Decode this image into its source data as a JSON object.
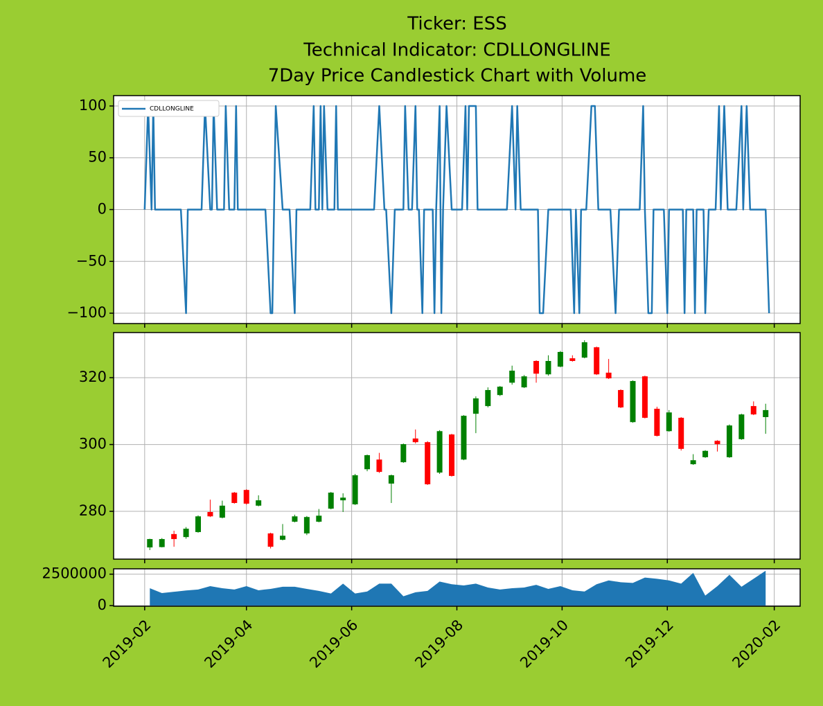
{
  "title": [
    "Ticker: ESS",
    "Technical Indicator: CDLLONGLINE",
    "7Day Price Candlestick Chart with Volume"
  ],
  "chart_data": [
    {
      "type": "line",
      "grid": true,
      "legend": "upper left",
      "xlim": [
        "2019-01-14",
        "2020-02-16"
      ],
      "xticks": [
        "2019-02-01",
        "2019-04-01",
        "2019-06-01",
        "2019-08-01",
        "2019-10-01",
        "2019-12-01",
        "2020-02-01"
      ],
      "ylim": [
        -110,
        110
      ],
      "yticks": [
        100,
        50,
        0,
        {
          "value": -50,
          "label": "−50"
        },
        {
          "value": -100,
          "label": "−100"
        }
      ],
      "x": [
        "2019-02-01",
        "2019-02-03",
        "2019-02-05",
        "2019-02-06",
        "2019-02-07",
        "2019-02-22",
        "2019-02-25",
        "2019-02-26",
        "2019-03-06",
        "2019-03-08",
        "2019-03-11",
        "2019-03-12",
        "2019-03-13",
        "2019-03-15",
        "2019-03-19",
        "2019-03-20",
        "2019-03-22",
        "2019-03-25",
        "2019-03-26",
        "2019-03-27",
        "2019-04-12",
        "2019-04-15",
        "2019-04-16",
        "2019-04-18",
        "2019-04-22",
        "2019-04-26",
        "2019-04-29",
        "2019-04-30",
        "2019-05-08",
        "2019-05-10",
        "2019-05-11",
        "2019-05-13",
        "2019-05-14",
        "2019-05-15",
        "2019-05-16",
        "2019-05-18",
        "2019-05-22",
        "2019-05-23",
        "2019-05-24",
        "2019-06-14",
        "2019-06-17",
        "2019-06-20",
        "2019-06-21",
        "2019-06-24",
        "2019-06-26",
        "2019-07-01",
        "2019-07-02",
        "2019-07-04",
        "2019-07-06",
        "2019-07-08",
        "2019-07-09",
        "2019-07-10",
        "2019-07-12",
        "2019-07-13",
        "2019-07-18",
        "2019-07-19",
        "2019-07-20",
        "2019-07-22",
        "2019-07-23",
        "2019-07-24",
        "2019-07-26",
        "2019-07-29",
        "2019-08-04",
        "2019-08-06",
        "2019-08-07",
        "2019-08-08",
        "2019-08-12",
        "2019-08-13",
        "2019-08-30",
        "2019-09-02",
        "2019-09-04",
        "2019-09-05",
        "2019-09-07",
        "2019-09-17",
        "2019-09-18",
        "2019-09-20",
        "2019-09-23",
        "2019-10-06",
        "2019-10-08",
        "2019-10-09",
        "2019-10-11",
        "2019-10-12",
        "2019-10-15",
        "2019-10-18",
        "2019-10-20",
        "2019-10-22",
        "2019-10-29",
        "2019-11-01",
        "2019-11-03",
        "2019-11-15",
        "2019-11-17",
        "2019-11-18",
        "2019-11-20",
        "2019-11-22",
        "2019-11-23",
        "2019-11-29",
        "2019-12-01",
        "2019-12-02",
        "2019-12-10",
        "2019-12-11",
        "2019-12-12",
        "2019-12-16",
        "2019-12-17",
        "2019-12-18",
        "2019-12-22",
        "2019-12-23",
        "2019-12-25",
        "2019-12-29",
        "2019-12-31",
        "2020-01-01",
        "2020-01-03",
        "2020-01-05",
        "2020-01-10",
        "2020-01-13",
        "2020-01-14",
        "2020-01-16",
        "2020-01-18",
        "2020-01-27",
        "2020-01-29"
      ],
      "series": [
        {
          "name": "CDLLONGLINE",
          "color": "#1f77b4",
          "values": [
            0,
            100,
            0,
            100,
            0,
            0,
            -100,
            0,
            0,
            100,
            0,
            0,
            100,
            0,
            0,
            100,
            0,
            0,
            100,
            0,
            0,
            -100,
            -100,
            100,
            0,
            0,
            -100,
            0,
            0,
            100,
            0,
            0,
            100,
            0,
            100,
            0,
            0,
            100,
            0,
            0,
            100,
            0,
            0,
            -100,
            0,
            0,
            100,
            0,
            0,
            100,
            0,
            0,
            -100,
            0,
            0,
            -100,
            0,
            100,
            -100,
            0,
            100,
            0,
            0,
            100,
            0,
            100,
            100,
            0,
            0,
            100,
            0,
            100,
            0,
            0,
            -100,
            -100,
            0,
            0,
            -100,
            0,
            -100,
            0,
            0,
            100,
            100,
            0,
            0,
            -100,
            0,
            0,
            100,
            0,
            -100,
            -100,
            0,
            0,
            -100,
            0,
            0,
            -100,
            0,
            0,
            -100,
            0,
            0,
            -100,
            0,
            0,
            100,
            0,
            100,
            0,
            0,
            100,
            0,
            100,
            0,
            0,
            -100
          ]
        }
      ]
    },
    {
      "type": "candlestick",
      "grid": true,
      "up_color": "green",
      "down_color": "red",
      "xlim": [
        "2019-01-14",
        "2020-02-16"
      ],
      "xticks": [
        "2019-02-01",
        "2019-04-01",
        "2019-06-01",
        "2019-08-01",
        "2019-10-01",
        "2019-12-01",
        "2020-02-01"
      ],
      "ylim": [
        265.7,
        333.5
      ],
      "yticks": [
        280,
        300,
        320
      ],
      "x": [
        "2019-02-04",
        "2019-02-11",
        "2019-02-18",
        "2019-02-25",
        "2019-03-04",
        "2019-03-11",
        "2019-03-18",
        "2019-03-25",
        "2019-04-01",
        "2019-04-08",
        "2019-04-15",
        "2019-04-22",
        "2019-04-29",
        "2019-05-06",
        "2019-05-13",
        "2019-05-20",
        "2019-05-27",
        "2019-06-03",
        "2019-06-10",
        "2019-06-17",
        "2019-06-24",
        "2019-07-01",
        "2019-07-08",
        "2019-07-15",
        "2019-07-22",
        "2019-07-29",
        "2019-08-05",
        "2019-08-12",
        "2019-08-19",
        "2019-08-26",
        "2019-09-02",
        "2019-09-09",
        "2019-09-16",
        "2019-09-23",
        "2019-09-30",
        "2019-10-07",
        "2019-10-14",
        "2019-10-21",
        "2019-10-28",
        "2019-11-04",
        "2019-11-11",
        "2019-11-18",
        "2019-11-25",
        "2019-12-02",
        "2019-12-09",
        "2019-12-16",
        "2019-12-23",
        "2019-12-30",
        "2020-01-06",
        "2020-01-13",
        "2020-01-20",
        "2020-01-27"
      ],
      "open": [
        269.2,
        269.3,
        273.2,
        272.3,
        273.8,
        279.8,
        278.1,
        285.6,
        286.4,
        281.7,
        273.4,
        271.5,
        276.9,
        273.4,
        276.9,
        280.8,
        283.3,
        282.1,
        292.6,
        295.5,
        288.3,
        294.7,
        301.8,
        300.7,
        291.6,
        303.0,
        295.5,
        309.2,
        311.5,
        314.8,
        318.5,
        317.1,
        325.0,
        321.0,
        323.3,
        325.8,
        326.0,
        329.1,
        321.5,
        316.3,
        306.7,
        320.4,
        310.7,
        304.0,
        308.0,
        294.1,
        296.2,
        301.1,
        296.2,
        301.6,
        311.5,
        308.2
      ],
      "high": [
        271.8,
        272.0,
        274.2,
        275.3,
        278.8,
        283.5,
        283.2,
        285.8,
        286.6,
        284.8,
        273.6,
        276.2,
        279.0,
        278.6,
        280.7,
        285.8,
        285.4,
        291.2,
        297.0,
        297.5,
        291.0,
        300.3,
        304.5,
        301.0,
        304.3,
        303.2,
        308.8,
        314.4,
        317.1,
        317.5,
        323.6,
        320.8,
        325.2,
        326.7,
        328.0,
        326.7,
        331.2,
        329.3,
        325.6,
        316.5,
        319.2,
        320.6,
        311.3,
        310.3,
        308.2,
        297.1,
        298.3,
        301.3,
        306.0,
        309.2,
        312.9,
        312.2
      ],
      "low": [
        268.4,
        269.2,
        269.4,
        271.8,
        273.6,
        278.3,
        277.9,
        282.3,
        282.0,
        281.5,
        268.9,
        271.3,
        276.7,
        272.9,
        276.7,
        280.6,
        279.8,
        281.9,
        292.0,
        291.5,
        282.5,
        294.5,
        300.3,
        287.9,
        291.2,
        290.4,
        295.3,
        303.4,
        311.1,
        314.5,
        317.9,
        316.9,
        318.5,
        320.6,
        323.1,
        324.8,
        325.8,
        320.8,
        319.6,
        310.9,
        306.5,
        307.8,
        302.4,
        303.8,
        298.2,
        293.9,
        296.0,
        297.9,
        296.0,
        301.4,
        308.8,
        303.2
      ],
      "close": [
        271.7,
        271.7,
        271.7,
        274.8,
        278.5,
        278.5,
        281.7,
        282.5,
        282.3,
        283.3,
        269.4,
        272.7,
        278.5,
        278.3,
        278.7,
        285.6,
        284.1,
        290.8,
        296.8,
        291.8,
        290.8,
        300.1,
        300.7,
        288.1,
        304.0,
        290.6,
        308.6,
        313.8,
        316.3,
        317.3,
        322.1,
        320.4,
        321.2,
        325.0,
        327.7,
        325.0,
        330.6,
        321.0,
        319.8,
        311.1,
        319.0,
        308.0,
        302.6,
        309.6,
        298.7,
        295.3,
        298.1,
        300.1,
        305.7,
        309.0,
        309.0,
        310.3
      ]
    },
    {
      "type": "area",
      "grid": true,
      "color": "#1f77b4",
      "xlim": [
        "2019-01-14",
        "2020-02-16"
      ],
      "xticks": [
        {
          "value": "2019-02-01",
          "label": "2019-02"
        },
        {
          "value": "2019-04-01",
          "label": "2019-04"
        },
        {
          "value": "2019-06-01",
          "label": "2019-06"
        },
        {
          "value": "2019-08-01",
          "label": "2019-08"
        },
        {
          "value": "2019-10-01",
          "label": "2019-10"
        },
        {
          "value": "2019-12-01",
          "label": "2019-12"
        },
        {
          "value": "2020-02-01",
          "label": "2020-02"
        }
      ],
      "ylim": [
        -50000,
        2925000
      ],
      "yticks": [
        0,
        2500000
      ],
      "x": [
        "2019-02-04",
        "2019-02-11",
        "2019-02-18",
        "2019-02-25",
        "2019-03-04",
        "2019-03-11",
        "2019-03-18",
        "2019-03-25",
        "2019-04-01",
        "2019-04-08",
        "2019-04-15",
        "2019-04-22",
        "2019-04-29",
        "2019-05-06",
        "2019-05-13",
        "2019-05-20",
        "2019-05-27",
        "2019-06-03",
        "2019-06-10",
        "2019-06-17",
        "2019-06-24",
        "2019-07-01",
        "2019-07-08",
        "2019-07-15",
        "2019-07-22",
        "2019-07-29",
        "2019-08-05",
        "2019-08-12",
        "2019-08-19",
        "2019-08-26",
        "2019-09-02",
        "2019-09-09",
        "2019-09-16",
        "2019-09-23",
        "2019-09-30",
        "2019-10-07",
        "2019-10-14",
        "2019-10-21",
        "2019-10-28",
        "2019-11-04",
        "2019-11-11",
        "2019-11-18",
        "2019-11-25",
        "2019-12-02",
        "2019-12-09",
        "2019-12-16",
        "2019-12-23",
        "2019-12-30",
        "2020-01-06",
        "2020-01-13",
        "2020-01-20",
        "2020-01-27"
      ],
      "values": [
        1380000,
        1000000,
        1100000,
        1200000,
        1280000,
        1550000,
        1380000,
        1280000,
        1550000,
        1220000,
        1330000,
        1500000,
        1500000,
        1330000,
        1170000,
        960000,
        1750000,
        960000,
        1120000,
        1750000,
        1750000,
        740000,
        1060000,
        1170000,
        1910000,
        1700000,
        1600000,
        1750000,
        1440000,
        1280000,
        1380000,
        1440000,
        1650000,
        1330000,
        1550000,
        1220000,
        1120000,
        1700000,
        2000000,
        1860000,
        1800000,
        2230000,
        2130000,
        2000000,
        1750000,
        2600000,
        800000,
        1550000,
        2450000,
        1500000,
        2130000,
        2770000
      ]
    }
  ]
}
